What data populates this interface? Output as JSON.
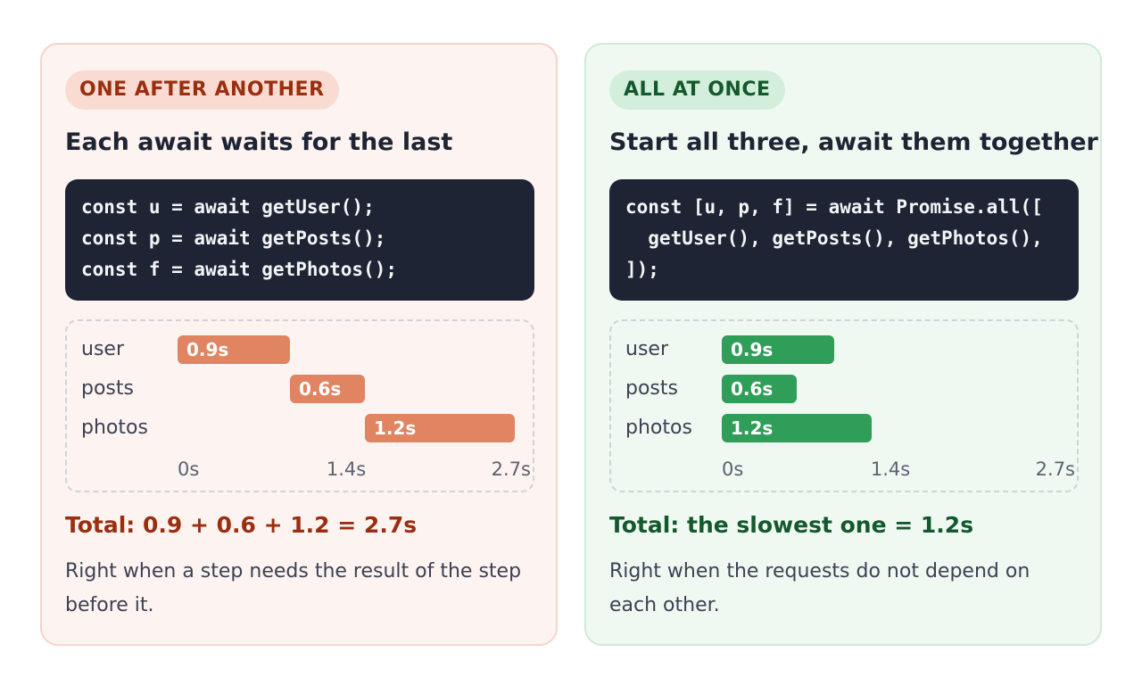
{
  "accent_colors": {
    "sequential": "#9a2f0f",
    "sequential_bar": "#e08462",
    "parallel": "#14582d",
    "parallel_bar": "#2f9e59"
  },
  "sequential": {
    "badge": "ONE AFTER ANOTHER",
    "heading": "Each await waits for the last",
    "code": [
      "const u = await getUser();",
      "const p = await getPosts();",
      "const f = await getPhotos();"
    ],
    "timeline": {
      "axis_max": 2.7,
      "ticks": [
        "0s",
        "1.4s",
        "2.7s"
      ],
      "rows": [
        {
          "label": "user",
          "start": 0,
          "duration": 0.9,
          "bar_label": "0.9s"
        },
        {
          "label": "posts",
          "start": 0.9,
          "duration": 0.6,
          "bar_label": "0.6s"
        },
        {
          "label": "photos",
          "start": 1.5,
          "duration": 1.2,
          "bar_label": "1.2s"
        }
      ]
    },
    "total": "Total: 0.9 + 0.6 + 1.2 = 2.7s",
    "note": "Right when a step needs the result of the step before it."
  },
  "parallel": {
    "badge": "ALL AT ONCE",
    "heading": "Start all three, await them together",
    "code": [
      "const [u, p, f] = await Promise.all([",
      "  getUser(), getPosts(), getPhotos(),",
      "]);"
    ],
    "timeline": {
      "axis_max": 2.7,
      "ticks": [
        "0s",
        "1.4s",
        "2.7s"
      ],
      "rows": [
        {
          "label": "user",
          "start": 0,
          "duration": 0.9,
          "bar_label": "0.9s"
        },
        {
          "label": "posts",
          "start": 0,
          "duration": 0.6,
          "bar_label": "0.6s"
        },
        {
          "label": "photos",
          "start": 0,
          "duration": 1.2,
          "bar_label": "1.2s"
        }
      ]
    },
    "total": "Total: the slowest one = 1.2s",
    "note": "Right when the requests do not depend on each other."
  }
}
